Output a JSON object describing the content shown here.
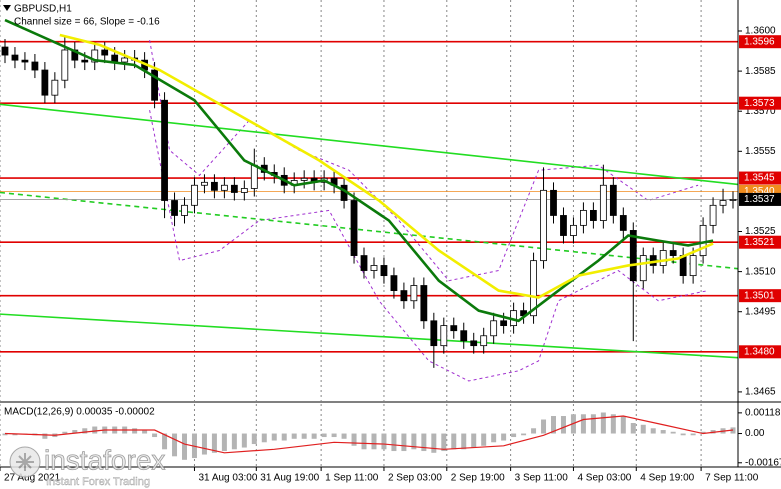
{
  "chart_data": {
    "type": "candlestick",
    "title": "GBPUSD,H1",
    "subtitle": "Channel size = 66, Slope = -0.16",
    "up_color": "#ffffff",
    "down_color": "#000000",
    "open": [
      1.3594,
      1.3591,
      1.35891,
      1.35884,
      1.35854,
      1.3576,
      1.35816,
      1.35929,
      1.35891,
      1.35884,
      1.35929,
      1.3591,
      1.35884,
      1.35899,
      1.35891,
      1.35854,
      1.35741,
      1.35366,
      1.3531,
      1.35348,
      1.35423,
      1.35434,
      1.35404,
      1.35423,
      1.35396,
      1.35411,
      1.35498,
      1.35471,
      1.3546,
      1.35423,
      1.35441,
      1.35449,
      1.35434,
      1.35449,
      1.35423,
      1.35366,
      1.3516,
      1.35104,
      1.35123,
      1.35085,
      1.35029,
      1.34991,
      1.35048,
      1.34916,
      1.34823,
      1.34898,
      1.34879,
      1.34841,
      1.34823,
      1.3486,
      1.34916,
      1.34898,
      1.34954,
      1.34935,
      1.35141,
      1.35404,
      1.3531,
      1.35235,
      1.35273,
      1.35329,
      1.35291,
      1.35423,
      1.3531,
      1.35254,
      1.35066,
      1.3516,
      1.35123,
      1.35179,
      1.3516,
      1.35085,
      1.3516,
      1.35273,
      1.35348,
      1.35366
    ],
    "high": [
      1.3597,
      1.3594,
      1.35921,
      1.35914,
      1.35884,
      1.35846,
      1.35985,
      1.35959,
      1.35921,
      1.35959,
      1.35959,
      1.3594,
      1.35929,
      1.35929,
      1.35921,
      1.35884,
      1.35771,
      1.35396,
      1.35378,
      1.35453,
      1.35464,
      1.35464,
      1.35453,
      1.35453,
      1.35441,
      1.3556,
      1.35528,
      1.35501,
      1.3549,
      1.35471,
      1.35479,
      1.35479,
      1.35479,
      1.35479,
      1.35453,
      1.35396,
      1.3519,
      1.35153,
      1.35153,
      1.35115,
      1.35059,
      1.35078,
      1.35078,
      1.34946,
      1.34928,
      1.34928,
      1.34909,
      1.34871,
      1.3489,
      1.34946,
      1.34946,
      1.34984,
      1.34984,
      1.35171,
      1.3549,
      1.35434,
      1.3534,
      1.35303,
      1.35359,
      1.35359,
      1.355,
      1.35453,
      1.3534,
      1.35284,
      1.3519,
      1.3519,
      1.35209,
      1.35209,
      1.3519,
      1.3519,
      1.35303,
      1.35378,
      1.3541,
      1.354
    ],
    "low": [
      1.3588,
      1.35861,
      1.35854,
      1.35824,
      1.3573,
      1.3573,
      1.35786,
      1.35861,
      1.35854,
      1.35854,
      1.3588,
      1.35854,
      1.35854,
      1.35861,
      1.35824,
      1.35711,
      1.353,
      1.3527,
      1.3528,
      1.35318,
      1.35393,
      1.35374,
      1.35374,
      1.35366,
      1.35366,
      1.35381,
      1.35441,
      1.3543,
      1.35393,
      1.35393,
      1.35411,
      1.35404,
      1.35404,
      1.35393,
      1.35336,
      1.3513,
      1.35074,
      1.35074,
      1.35055,
      1.34999,
      1.34961,
      1.34961,
      1.34886,
      1.3474,
      1.34793,
      1.34849,
      1.34811,
      1.34793,
      1.34793,
      1.3483,
      1.34868,
      1.34868,
      1.34905,
      1.34905,
      1.35111,
      1.3528,
      1.35205,
      1.35205,
      1.35243,
      1.35261,
      1.35261,
      1.3528,
      1.35224,
      1.3484,
      1.35036,
      1.35093,
      1.35093,
      1.3513,
      1.35055,
      1.35055,
      1.3513,
      1.35243,
      1.35318,
      1.35336
    ],
    "close": [
      1.3591,
      1.35891,
      1.35884,
      1.35854,
      1.3576,
      1.35816,
      1.35929,
      1.35891,
      1.35884,
      1.35929,
      1.3591,
      1.35884,
      1.35899,
      1.35891,
      1.35854,
      1.35741,
      1.35366,
      1.3531,
      1.35348,
      1.35423,
      1.35434,
      1.35404,
      1.35423,
      1.35396,
      1.35411,
      1.35498,
      1.35471,
      1.3546,
      1.35423,
      1.35441,
      1.35449,
      1.35434,
      1.35449,
      1.35423,
      1.35366,
      1.3516,
      1.35104,
      1.35123,
      1.35085,
      1.35029,
      1.34991,
      1.35048,
      1.34916,
      1.34823,
      1.34898,
      1.34879,
      1.34841,
      1.34823,
      1.3486,
      1.34916,
      1.34898,
      1.34954,
      1.34935,
      1.35141,
      1.35404,
      1.3531,
      1.35235,
      1.35273,
      1.35329,
      1.35291,
      1.35423,
      1.3531,
      1.35254,
      1.35066,
      1.3516,
      1.35123,
      1.35179,
      1.3516,
      1.35085,
      1.3516,
      1.35273,
      1.35348,
      1.35366,
      1.3537
    ],
    "xlim": [
      -0.5,
      73.5
    ],
    "xticks": [
      {
        "value": -0.5,
        "label": "27 Aug 2021"
      },
      {
        "value": 19,
        "label": "31 Aug 03:00"
      },
      {
        "value": 25.2,
        "label": "31 Aug 19:00"
      },
      {
        "value": 31.7,
        "label": "1 Sep 11:00"
      },
      {
        "value": 38,
        "label": "2 Sep 03:00"
      },
      {
        "value": 44.3,
        "label": "2 Sep 19:00"
      },
      {
        "value": 50.7,
        "label": "3 Sep 11:00"
      },
      {
        "value": 57,
        "label": "4 Sep 03:00"
      },
      {
        "value": 63.3,
        "label": "4 Sep 19:00"
      },
      {
        "value": 69.8,
        "label": "7 Sep 11:00"
      }
    ],
    "grid": "x",
    "ylim": [
      1.34616,
      1.36116
    ],
    "yticks": [
      {
        "value": 1.36,
        "label": "1.3600"
      },
      1.3585,
      {
        "value": 1.357,
        "label": "1.3570"
      },
      1.3555,
      1.3525,
      {
        "value": 1.351,
        "label": "1.3510"
      },
      1.3495,
      1.3465
    ],
    "level_color": "#e00000",
    "levels": [
      1.3596,
      1.3573,
      1.3545,
      1.3521,
      1.3501,
      {
        "value": 1.348,
        "label": "1.3480"
      }
    ],
    "ask": {
      "value": 1.354,
      "label": "1.3540",
      "color": "#f08c1e"
    },
    "bid": {
      "value": 1.3537,
      "color": "#000000"
    },
    "trendlines": [
      {
        "color": "#22dd22",
        "dashed": false,
        "x": [
          -0.5,
          73.5
        ],
        "values": [
          1.35726,
          1.35426
        ]
      },
      {
        "color": "#22dd22",
        "dashed": false,
        "x": [
          -0.5,
          73.5
        ],
        "values": [
          1.34941,
          1.34778
        ]
      },
      {
        "color": "#22cc22",
        "dashed": true,
        "x": [
          -0.5,
          73.5
        ],
        "values": [
          1.35396,
          1.35111
        ]
      }
    ],
    "moving_averages": [
      {
        "color": "#0b7a0b",
        "x": [
          0,
          9,
          13,
          19,
          24,
          29,
          32,
          34,
          38.5,
          43.5,
          47.5,
          51.5,
          55.5,
          59.5,
          62.5,
          65.5,
          68.5,
          71
        ],
        "values": [
          1.36041,
          1.35891,
          1.35873,
          1.35741,
          1.35516,
          1.35423,
          1.35441,
          1.35404,
          1.35291,
          1.35066,
          1.34954,
          1.34916,
          1.35029,
          1.35141,
          1.35235,
          1.35216,
          1.35198,
          1.35216
        ]
      },
      {
        "color": "#f2ee00",
        "x": [
          5.5,
          9.5,
          15.5,
          23.5,
          31.5,
          37.5,
          43.5,
          49.5,
          53.5,
          57.5,
          62.5,
          67.5,
          71
        ],
        "values": [
          1.35985,
          1.35948,
          1.35854,
          1.35685,
          1.35516,
          1.35366,
          1.35179,
          1.35029,
          1.35003,
          1.35085,
          1.35123,
          1.35149,
          1.35205
        ]
      }
    ],
    "envelopes": [
      {
        "color": "#a030d0",
        "x": [
          14.5,
          16.5,
          19.5,
          24.5,
          29.5,
          34.5,
          39.5,
          44.5,
          49.5,
          53.5,
          59.5,
          64.5,
          69.5
        ],
        "values": [
          1.35966,
          1.35554,
          1.3546,
          1.35666,
          1.35554,
          1.35479,
          1.35291,
          1.35066,
          1.35104,
          1.35479,
          1.35498,
          1.35366,
          1.35423
        ]
      },
      {
        "color": "#a030d0",
        "x": [
          14.5,
          17.5,
          21.5,
          25.5,
          32.5,
          37.5,
          42.5,
          46.5,
          51.5,
          53.5,
          55.5,
          61.5,
          65.5,
          70.5
        ],
        "values": [
          1.35704,
          1.35141,
          1.35179,
          1.35291,
          1.35329,
          1.34991,
          1.34766,
          1.34691,
          1.34729,
          1.34766,
          1.34991,
          1.35104,
          1.34991,
          1.35029
        ]
      }
    ],
    "macd": {
      "title": "MACD(12,26,9) 0.00035 -0.00002",
      "ylim": [
        -0.001854,
        0.001686
      ],
      "yticks": [
        0.00118,
        {
          "value": 0,
          "label": "0.00"
        },
        -0.00167
      ],
      "histogram_color": "#b4b4b4",
      "histogram": [
        -0.0001,
        -0.0001,
        0,
        -0.0001,
        -0.0003,
        -0.0002,
        0.0001,
        0.0002,
        0.0003,
        0.0004,
        0.0004,
        0.0004,
        0.0004,
        0.0003,
        0.0002,
        -0.0002,
        -0.0009,
        -0.0013,
        -0.0015,
        -0.0014,
        -0.0012,
        -0.0011,
        -0.001,
        -0.0009,
        -0.0008,
        -0.0006,
        -0.0005,
        -0.0004,
        -0.0004,
        -0.0003,
        -0.0003,
        -0.0003,
        -0.0002,
        -0.0002,
        -0.0003,
        -0.0007,
        -0.0009,
        -0.0009,
        -0.0009,
        -0.001,
        -0.001,
        -0.0009,
        -0.001,
        -0.0011,
        -0.001,
        -0.0009,
        -0.0009,
        -0.0008,
        -0.0007,
        -0.0005,
        -0.0004,
        -0.0002,
        -0.0001,
        0.0003,
        0.0008,
        0.001,
        0.001,
        0.0011,
        0.0011,
        0.0011,
        0.0012,
        0.0011,
        0.001,
        0.0006,
        0.0005,
        0.0003,
        0.0002,
        0.0001,
        -0.0001,
        -0.0001,
        0.0001,
        0.0002,
        0.0003,
        0.00035
      ],
      "signal": {
        "color": "#e02020",
        "x": [
          0,
          5,
          10,
          15,
          18,
          22,
          27,
          33,
          38,
          44,
          50,
          54,
          58,
          62,
          66,
          70,
          73
        ],
        "values": [
          0,
          -0.0001,
          0.0002,
          0.0002,
          -0.0006,
          -0.0011,
          -0.0009,
          -0.0005,
          -0.0006,
          -0.0009,
          -0.0007,
          -0.0001,
          0.0008,
          0.001,
          0.0005,
          0,
          0.0002
        ]
      }
    }
  },
  "watermark": {
    "brand": "instaforex",
    "tagline": "Instant Forex Trading"
  }
}
